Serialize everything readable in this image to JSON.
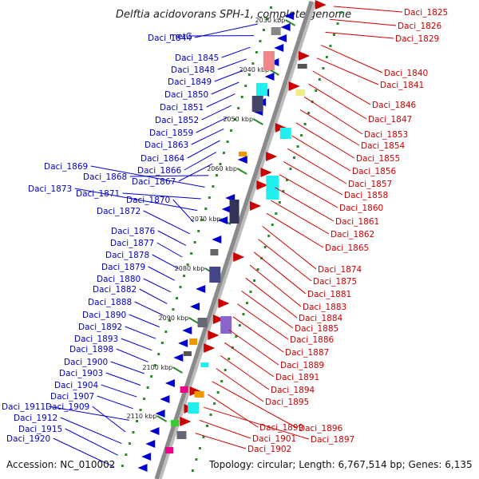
{
  "title": "Delftia acidovorans SPH-1, complete genome",
  "accession": "Accession: NC_010002",
  "topology": "Topology: circular; Length: 6,767,514 bp; Genes: 6,135",
  "ticks": [
    "2030 kbp",
    "2040 kbp",
    "2050 kbp",
    "2060 kbp",
    "2070 kbp",
    "2080 kbp",
    "2090 kbp",
    "2100 kbp",
    "2110 kbp"
  ],
  "left_labels": [
    "Daci_1844",
    "metG",
    "Daci_1845",
    "Daci_1848",
    "Daci_1849",
    "Daci_1850",
    "Daci_1851",
    "Daci_1852",
    "Daci_1859",
    "Daci_1863",
    "Daci_1864",
    "Daci_1866",
    "Daci_1867",
    "Daci_1868",
    "Daci_1869",
    "Daci_1871",
    "Daci_1873",
    "Daci_1870",
    "Daci_1872",
    "Daci_1876",
    "Daci_1877",
    "Daci_1878",
    "Daci_1879",
    "Daci_1880",
    "Daci_1882",
    "Daci_1888",
    "Daci_1890",
    "Daci_1892",
    "Daci_1893",
    "Daci_1898",
    "Daci_1900",
    "Daci_1903",
    "Daci_1904",
    "Daci_1907",
    "Daci_1911",
    "Daci_1909",
    "Daci_1912",
    "Daci_1915",
    "Daci_1920"
  ],
  "right_labels": [
    "Daci_1825",
    "Daci_1826",
    "Daci_1829",
    "Daci_1840",
    "Daci_1841",
    "Daci_1846",
    "Daci_1847",
    "Daci_1853",
    "Daci_1854",
    "Daci_1855",
    "Daci_1856",
    "Daci_1857",
    "Daci_1858",
    "Daci_1860",
    "Daci_1861",
    "Daci_1862",
    "Daci_1865",
    "Daci_1874",
    "Daci_1875",
    "Daci_1881",
    "Daci_1883",
    "Daci_1884",
    "Daci_1885",
    "Daci_1886",
    "Daci_1887",
    "Daci_1889",
    "Daci_1891",
    "Daci_1894",
    "Daci_1895",
    "Daci_1896",
    "Daci_1899",
    "Daci_1897",
    "Daci_1901",
    "Daci_1902"
  ],
  "colors": {
    "forward": "#0000cc",
    "reverse": "#cc0000",
    "backbone": "#8a8a8a",
    "gc_dot": "#2a8a2a"
  }
}
